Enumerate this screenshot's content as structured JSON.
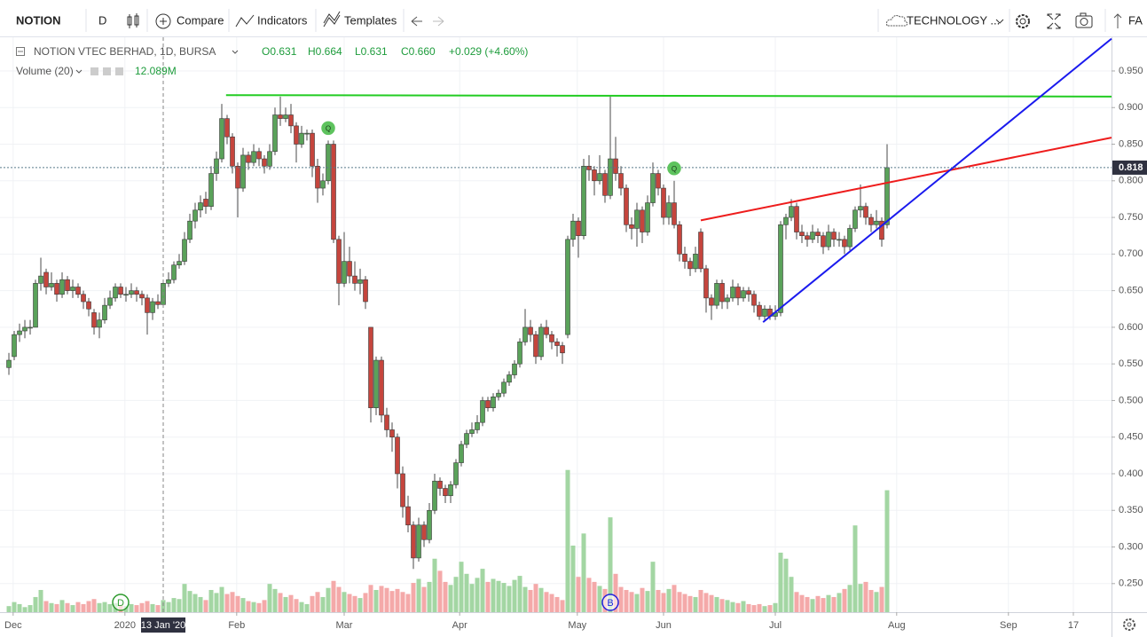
{
  "toolbar": {
    "symbol": "NOTION",
    "interval": "D",
    "compare": "Compare",
    "indicators": "Indicators",
    "templates": "Templates",
    "layout": "TECHNOLOGY ...",
    "fa": "FA"
  },
  "chart_data": {
    "type": "candlestick",
    "title": "NOTION VTEC BERHAD, 1D, BURSA",
    "volume_study": "Volume (20)",
    "crosshair": {
      "index": 29,
      "label": "13 Jan '20",
      "printed": [
        "O0.631",
        "H0.664",
        "L0.631",
        "C0.660",
        "+0.029 (+4.60%)"
      ]
    },
    "up_color": "#5aa25a",
    "down_color": "#c5453d",
    "volume_up_color": "#a3d6a3",
    "volume_down_color": "#f4a9a9",
    "grid": true,
    "xlim": [
      -1.67,
      207.17
    ],
    "ylim": [
      0.211,
      0.996
    ],
    "volume_lim": [
      0,
      57
    ],
    "yticks": [
      {
        "value": 0.25,
        "label": "0.250"
      },
      {
        "value": 0.3,
        "label": "0.300"
      },
      {
        "value": 0.35,
        "label": "0.350"
      },
      {
        "value": 0.4,
        "label": "0.400"
      },
      {
        "value": 0.45,
        "label": "0.450"
      },
      {
        "value": 0.5,
        "label": "0.500"
      },
      {
        "value": 0.55,
        "label": "0.550"
      },
      {
        "value": 0.6,
        "label": "0.600"
      },
      {
        "value": 0.65,
        "label": "0.650"
      },
      {
        "value": 0.7,
        "label": "0.700"
      },
      {
        "value": 0.75,
        "label": "0.750"
      },
      {
        "value": 0.8,
        "label": "0.800"
      },
      {
        "value": 0.85,
        "label": "0.850"
      },
      {
        "value": 0.9,
        "label": "0.900"
      },
      {
        "value": 0.95,
        "label": "0.950"
      }
    ],
    "xticks": [
      {
        "value": 0.8,
        "label": "Dec"
      },
      {
        "value": 21.8,
        "label": "2020"
      },
      {
        "value": 42.8,
        "label": "Feb"
      },
      {
        "value": 63,
        "label": "Mar"
      },
      {
        "value": 84.7,
        "label": "Apr"
      },
      {
        "value": 106.8,
        "label": "May"
      },
      {
        "value": 123,
        "label": "Jun"
      },
      {
        "value": 144,
        "label": "Jul"
      },
      {
        "value": 166.8,
        "label": "Aug"
      },
      {
        "value": 187.8,
        "label": "Sep"
      },
      {
        "value": 200,
        "label": "17"
      }
    ],
    "ohlc": [
      [
        0.545,
        0.565,
        0.535,
        0.555
      ],
      [
        0.56,
        0.595,
        0.555,
        0.59
      ],
      [
        0.59,
        0.605,
        0.58,
        0.595
      ],
      [
        0.595,
        0.61,
        0.585,
        0.6
      ],
      [
        0.6,
        0.61,
        0.59,
        0.6
      ],
      [
        0.6,
        0.665,
        0.6,
        0.66
      ],
      [
        0.66,
        0.695,
        0.65,
        0.67
      ],
      [
        0.675,
        0.68,
        0.645,
        0.655
      ],
      [
        0.655,
        0.675,
        0.65,
        0.66
      ],
      [
        0.66,
        0.665,
        0.635,
        0.645
      ],
      [
        0.645,
        0.675,
        0.64,
        0.665
      ],
      [
        0.665,
        0.67,
        0.645,
        0.65
      ],
      [
        0.65,
        0.665,
        0.64,
        0.655
      ],
      [
        0.655,
        0.66,
        0.64,
        0.645
      ],
      [
        0.645,
        0.65,
        0.625,
        0.635
      ],
      [
        0.635,
        0.64,
        0.615,
        0.625
      ],
      [
        0.62,
        0.625,
        0.59,
        0.6
      ],
      [
        0.6,
        0.62,
        0.585,
        0.61
      ],
      [
        0.61,
        0.64,
        0.605,
        0.63
      ],
      [
        0.63,
        0.65,
        0.625,
        0.64
      ],
      [
        0.64,
        0.66,
        0.635,
        0.655
      ],
      [
        0.655,
        0.66,
        0.64,
        0.645
      ],
      [
        0.645,
        0.655,
        0.635,
        0.645
      ],
      [
        0.645,
        0.66,
        0.64,
        0.65
      ],
      [
        0.65,
        0.655,
        0.635,
        0.645
      ],
      [
        0.645,
        0.65,
        0.63,
        0.64
      ],
      [
        0.64,
        0.645,
        0.59,
        0.62
      ],
      [
        0.62,
        0.64,
        0.61,
        0.635
      ],
      [
        0.635,
        0.645,
        0.625,
        0.631
      ],
      [
        0.631,
        0.664,
        0.631,
        0.66
      ],
      [
        0.66,
        0.675,
        0.655,
        0.665
      ],
      [
        0.665,
        0.69,
        0.66,
        0.685
      ],
      [
        0.685,
        0.7,
        0.68,
        0.69
      ],
      [
        0.69,
        0.73,
        0.685,
        0.72
      ],
      [
        0.72,
        0.755,
        0.715,
        0.745
      ],
      [
        0.745,
        0.77,
        0.735,
        0.76
      ],
      [
        0.76,
        0.78,
        0.75,
        0.77
      ],
      [
        0.775,
        0.785,
        0.755,
        0.765
      ],
      [
        0.765,
        0.82,
        0.76,
        0.81
      ],
      [
        0.81,
        0.84,
        0.8,
        0.83
      ],
      [
        0.83,
        0.905,
        0.825,
        0.885
      ],
      [
        0.885,
        0.89,
        0.85,
        0.86
      ],
      [
        0.86,
        0.865,
        0.81,
        0.82
      ],
      [
        0.82,
        0.825,
        0.75,
        0.79
      ],
      [
        0.79,
        0.845,
        0.785,
        0.835
      ],
      [
        0.835,
        0.84,
        0.815,
        0.825
      ],
      [
        0.825,
        0.85,
        0.82,
        0.84
      ],
      [
        0.84,
        0.845,
        0.82,
        0.83
      ],
      [
        0.83,
        0.835,
        0.81,
        0.82
      ],
      [
        0.82,
        0.85,
        0.815,
        0.84
      ],
      [
        0.84,
        0.9,
        0.835,
        0.89
      ],
      [
        0.89,
        0.915,
        0.875,
        0.885
      ],
      [
        0.885,
        0.9,
        0.88,
        0.89
      ],
      [
        0.89,
        0.905,
        0.865,
        0.875
      ],
      [
        0.875,
        0.88,
        0.825,
        0.85
      ],
      [
        0.85,
        0.875,
        0.845,
        0.865
      ],
      [
        0.865,
        0.87,
        0.855,
        0.865
      ],
      [
        0.865,
        0.87,
        0.805,
        0.82
      ],
      [
        0.82,
        0.83,
        0.77,
        0.79
      ],
      [
        0.79,
        0.81,
        0.78,
        0.8
      ],
      [
        0.8,
        0.855,
        0.795,
        0.85
      ],
      [
        0.85,
        0.855,
        0.715,
        0.72
      ],
      [
        0.72,
        0.725,
        0.63,
        0.66
      ],
      [
        0.66,
        0.73,
        0.655,
        0.69
      ],
      [
        0.69,
        0.71,
        0.66,
        0.67
      ],
      [
        0.67,
        0.69,
        0.65,
        0.66
      ],
      [
        0.66,
        0.68,
        0.645,
        0.665
      ],
      [
        0.665,
        0.67,
        0.625,
        0.635
      ],
      [
        0.6,
        0.6,
        0.47,
        0.49
      ],
      [
        0.49,
        0.56,
        0.48,
        0.555
      ],
      [
        0.555,
        0.56,
        0.47,
        0.48
      ],
      [
        0.48,
        0.49,
        0.45,
        0.46
      ],
      [
        0.46,
        0.47,
        0.43,
        0.45
      ],
      [
        0.45,
        0.455,
        0.38,
        0.4
      ],
      [
        0.4,
        0.41,
        0.34,
        0.355
      ],
      [
        0.355,
        0.37,
        0.32,
        0.33
      ],
      [
        0.33,
        0.335,
        0.27,
        0.285
      ],
      [
        0.285,
        0.34,
        0.28,
        0.33
      ],
      [
        0.33,
        0.335,
        0.3,
        0.31
      ],
      [
        0.31,
        0.36,
        0.305,
        0.35
      ],
      [
        0.35,
        0.4,
        0.345,
        0.39
      ],
      [
        0.39,
        0.395,
        0.37,
        0.38
      ],
      [
        0.38,
        0.385,
        0.36,
        0.37
      ],
      [
        0.37,
        0.39,
        0.36,
        0.385
      ],
      [
        0.385,
        0.42,
        0.38,
        0.415
      ],
      [
        0.415,
        0.445,
        0.41,
        0.44
      ],
      [
        0.44,
        0.46,
        0.435,
        0.455
      ],
      [
        0.455,
        0.47,
        0.45,
        0.46
      ],
      [
        0.46,
        0.48,
        0.455,
        0.47
      ],
      [
        0.47,
        0.505,
        0.465,
        0.5
      ],
      [
        0.5,
        0.505,
        0.485,
        0.49
      ],
      [
        0.49,
        0.51,
        0.485,
        0.505
      ],
      [
        0.505,
        0.515,
        0.5,
        0.51
      ],
      [
        0.51,
        0.53,
        0.505,
        0.525
      ],
      [
        0.525,
        0.54,
        0.52,
        0.535
      ],
      [
        0.535,
        0.555,
        0.53,
        0.55
      ],
      [
        0.55,
        0.585,
        0.545,
        0.58
      ],
      [
        0.58,
        0.625,
        0.575,
        0.6
      ],
      [
        0.6,
        0.61,
        0.58,
        0.59
      ],
      [
        0.59,
        0.595,
        0.55,
        0.56
      ],
      [
        0.56,
        0.605,
        0.555,
        0.6
      ],
      [
        0.6,
        0.61,
        0.585,
        0.59
      ],
      [
        0.59,
        0.595,
        0.57,
        0.58
      ],
      [
        0.58,
        0.585,
        0.56,
        0.575
      ],
      [
        0.575,
        0.58,
        0.55,
        0.565
      ],
      [
        0.59,
        0.725,
        0.585,
        0.72
      ],
      [
        0.72,
        0.755,
        0.71,
        0.745
      ],
      [
        0.745,
        0.75,
        0.695,
        0.725
      ],
      [
        0.725,
        0.83,
        0.72,
        0.82
      ],
      [
        0.82,
        0.835,
        0.8,
        0.815
      ],
      [
        0.815,
        0.82,
        0.78,
        0.8
      ],
      [
        0.8,
        0.835,
        0.795,
        0.81
      ],
      [
        0.81,
        0.815,
        0.77,
        0.78
      ],
      [
        0.78,
        0.915,
        0.775,
        0.83
      ],
      [
        0.83,
        0.86,
        0.8,
        0.81
      ],
      [
        0.81,
        0.82,
        0.78,
        0.79
      ],
      [
        0.79,
        0.795,
        0.73,
        0.74
      ],
      [
        0.74,
        0.75,
        0.72,
        0.735
      ],
      [
        0.735,
        0.77,
        0.71,
        0.76
      ],
      [
        0.76,
        0.765,
        0.715,
        0.73
      ],
      [
        0.73,
        0.78,
        0.725,
        0.77
      ],
      [
        0.77,
        0.825,
        0.765,
        0.81
      ],
      [
        0.81,
        0.815,
        0.78,
        0.79
      ],
      [
        0.79,
        0.795,
        0.74,
        0.75
      ],
      [
        0.75,
        0.78,
        0.74,
        0.77
      ],
      [
        0.77,
        0.8,
        0.735,
        0.74
      ],
      [
        0.74,
        0.745,
        0.69,
        0.7
      ],
      [
        0.7,
        0.71,
        0.68,
        0.69
      ],
      [
        0.69,
        0.695,
        0.67,
        0.68
      ],
      [
        0.68,
        0.71,
        0.675,
        0.7
      ],
      [
        0.73,
        0.735,
        0.675,
        0.68
      ],
      [
        0.68,
        0.685,
        0.62,
        0.64
      ],
      [
        0.64,
        0.645,
        0.61,
        0.63
      ],
      [
        0.63,
        0.665,
        0.625,
        0.66
      ],
      [
        0.66,
        0.665,
        0.625,
        0.635
      ],
      [
        0.635,
        0.645,
        0.625,
        0.64
      ],
      [
        0.64,
        0.665,
        0.635,
        0.655
      ],
      [
        0.655,
        0.66,
        0.63,
        0.64
      ],
      [
        0.64,
        0.655,
        0.635,
        0.65
      ],
      [
        0.65,
        0.655,
        0.635,
        0.645
      ],
      [
        0.645,
        0.65,
        0.62,
        0.63
      ],
      [
        0.63,
        0.635,
        0.61,
        0.615
      ],
      [
        0.615,
        0.63,
        0.61,
        0.625
      ],
      [
        0.625,
        0.63,
        0.61,
        0.615
      ],
      [
        0.615,
        0.63,
        0.61,
        0.62
      ],
      [
        0.62,
        0.745,
        0.615,
        0.74
      ],
      [
        0.74,
        0.755,
        0.72,
        0.75
      ],
      [
        0.75,
        0.775,
        0.745,
        0.765
      ],
      [
        0.765,
        0.77,
        0.72,
        0.73
      ],
      [
        0.73,
        0.74,
        0.715,
        0.725
      ],
      [
        0.725,
        0.73,
        0.71,
        0.72
      ],
      [
        0.72,
        0.74,
        0.715,
        0.73
      ],
      [
        0.73,
        0.735,
        0.715,
        0.725
      ],
      [
        0.725,
        0.73,
        0.7,
        0.71
      ],
      [
        0.71,
        0.74,
        0.705,
        0.73
      ],
      [
        0.73,
        0.735,
        0.71,
        0.72
      ],
      [
        0.72,
        0.73,
        0.71,
        0.72
      ],
      [
        0.72,
        0.725,
        0.7,
        0.71
      ],
      [
        0.71,
        0.74,
        0.705,
        0.735
      ],
      [
        0.735,
        0.765,
        0.73,
        0.76
      ],
      [
        0.76,
        0.795,
        0.75,
        0.765
      ],
      [
        0.765,
        0.77,
        0.74,
        0.75
      ],
      [
        0.75,
        0.755,
        0.73,
        0.74
      ],
      [
        0.74,
        0.76,
        0.735,
        0.745
      ],
      [
        0.745,
        0.75,
        0.71,
        0.72
      ],
      [
        0.74,
        0.85,
        0.735,
        0.818
      ]
    ],
    "volume": [
      0.6,
      1.0,
      0.8,
      0.5,
      0.7,
      1.5,
      2.2,
      1.1,
      0.9,
      0.8,
      1.2,
      0.9,
      0.7,
      1.0,
      0.8,
      1.1,
      1.3,
      0.9,
      1.0,
      0.8,
      0.9,
      0.7,
      0.6,
      0.8,
      0.7,
      0.9,
      1.1,
      0.8,
      0.7,
      1.2,
      1.0,
      1.4,
      1.3,
      2.8,
      2.1,
      1.8,
      1.5,
      1.2,
      2.2,
      1.9,
      2.5,
      1.8,
      2.0,
      1.6,
      1.4,
      1.1,
      1.0,
      0.9,
      1.2,
      2.8,
      2.3,
      1.9,
      1.5,
      1.7,
      1.3,
      1.0,
      0.8,
      1.6,
      2.0,
      1.5,
      2.4,
      3.1,
      2.5,
      2.0,
      1.8,
      1.6,
      1.4,
      1.9,
      2.7,
      2.2,
      2.6,
      2.4,
      2.1,
      2.3,
      2.0,
      1.8,
      2.9,
      3.3,
      2.5,
      3.0,
      5.3,
      4.1,
      3.0,
      2.7,
      3.5,
      5.0,
      3.8,
      2.8,
      3.4,
      4.3,
      3.0,
      3.3,
      3.1,
      2.9,
      2.6,
      3.2,
      3.6,
      2.5,
      2.2,
      2.8,
      2.4,
      2.0,
      1.8,
      1.5,
      1.2,
      14.1,
      6.6,
      3.5,
      7.8,
      3.4,
      3.0,
      2.6,
      2.3,
      9.4,
      3.8,
      2.5,
      2.2,
      2.0,
      1.8,
      2.4,
      2.1,
      5.0,
      2.2,
      1.9,
      2.3,
      2.7,
      2.0,
      1.8,
      1.6,
      1.5,
      2.2,
      1.9,
      1.7,
      1.5,
      1.3,
      1.2,
      1.0,
      0.9,
      1.1,
      0.8,
      0.7,
      0.8,
      0.6,
      0.7,
      0.9,
      5.9,
      5.3,
      3.5,
      2.0,
      1.7,
      1.5,
      1.3,
      1.6,
      1.4,
      1.7,
      1.5,
      1.9,
      2.3,
      2.7,
      8.6,
      2.8,
      3.0,
      2.2,
      2.0,
      2.5,
      12.089
    ],
    "volume_last_label": "12.089M",
    "drawings": [
      {
        "color": "#22cc22",
        "from": [
          40.8,
          0.917
        ],
        "to": [
          207.17,
          0.915
        ]
      },
      {
        "color": "#ee1c1c",
        "from": [
          130,
          0.746
        ],
        "to": [
          207.17,
          0.859
        ]
      },
      {
        "color": "#1a1aee",
        "from": [
          141.7,
          0.607
        ],
        "to": [
          207.17,
          0.994
        ]
      }
    ],
    "events": [
      {
        "label": "Q",
        "index": 60,
        "color": "#5ec35e",
        "style": "filled",
        "place": "above"
      },
      {
        "label": "Q",
        "index": 125,
        "color": "#5ec35e",
        "style": "filled",
        "place": "above"
      },
      {
        "label": "D",
        "index": 21,
        "color": "#2e9b2e",
        "style": "outline",
        "place": "bottom"
      },
      {
        "label": "B",
        "index": 113,
        "color": "#2222dd",
        "style": "outline",
        "place": "bottom"
      }
    ]
  }
}
